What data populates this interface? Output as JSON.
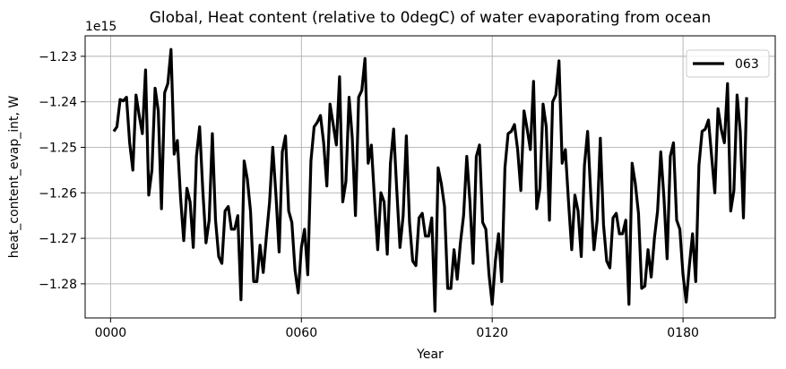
{
  "chart_data": {
    "type": "line",
    "title": "Global, Heat content (relative to 0degC) of water evaporating from ocean",
    "xlabel": "Year",
    "ylabel": "heat_content_evap_int, W",
    "y_offset_label": "1e15",
    "y_scale": 1000000000000000.0,
    "xlim": [
      -8,
      209
    ],
    "ylim": [
      -1.2875,
      -1.2255
    ],
    "xticks": [
      0,
      60,
      120,
      180
    ],
    "xtick_labels": [
      "0000",
      "0060",
      "0120",
      "0180"
    ],
    "yticks": [
      -1.28,
      -1.27,
      -1.26,
      -1.25,
      -1.24,
      -1.23
    ],
    "ytick_labels": [
      "−1.28",
      "−1.27",
      "−1.26",
      "−1.25",
      "−1.24",
      "−1.23"
    ],
    "grid": true,
    "legend_position": "top-right",
    "series": [
      {
        "name": "063",
        "color": "#000000",
        "x_start": 1,
        "x_step": 1,
        "values": [
          -1.2465,
          -1.2455,
          -1.2395,
          -1.2398,
          -1.239,
          -1.249,
          -1.255,
          -1.2385,
          -1.243,
          -1.247,
          -1.233,
          -1.2605,
          -1.255,
          -1.237,
          -1.242,
          -1.2635,
          -1.238,
          -1.236,
          -1.2285,
          -1.2515,
          -1.2485,
          -1.261,
          -1.2705,
          -1.259,
          -1.262,
          -1.272,
          -1.252,
          -1.2455,
          -1.2595,
          -1.271,
          -1.266,
          -1.247,
          -1.266,
          -1.274,
          -1.2755,
          -1.264,
          -1.263,
          -1.268,
          -1.268,
          -1.265,
          -1.2835,
          -1.253,
          -1.257,
          -1.264,
          -1.2795,
          -1.2795,
          -1.2715,
          -1.2775,
          -1.2695,
          -1.262,
          -1.25,
          -1.2605,
          -1.273,
          -1.251,
          -1.2475,
          -1.264,
          -1.2665,
          -1.277,
          -1.282,
          -1.272,
          -1.268,
          -1.278,
          -1.253,
          -1.2455,
          -1.2445,
          -1.243,
          -1.249,
          -1.2585,
          -1.2405,
          -1.245,
          -1.2495,
          -1.2345,
          -1.262,
          -1.2575,
          -1.239,
          -1.248,
          -1.265,
          -1.239,
          -1.2375,
          -1.2305,
          -1.2535,
          -1.2495,
          -1.2615,
          -1.2725,
          -1.26,
          -1.262,
          -1.2735,
          -1.2535,
          -1.246,
          -1.2595,
          -1.272,
          -1.265,
          -1.2475,
          -1.2665,
          -1.275,
          -1.276,
          -1.2655,
          -1.2645,
          -1.2695,
          -1.2695,
          -1.2655,
          -1.286,
          -1.2545,
          -1.258,
          -1.263,
          -1.281,
          -1.281,
          -1.2725,
          -1.279,
          -1.271,
          -1.265,
          -1.252,
          -1.262,
          -1.2755,
          -1.252,
          -1.2495,
          -1.2665,
          -1.268,
          -1.278,
          -1.2845,
          -1.275,
          -1.269,
          -1.2795,
          -1.2545,
          -1.247,
          -1.2465,
          -1.245,
          -1.2505,
          -1.2595,
          -1.242,
          -1.246,
          -1.2505,
          -1.2355,
          -1.2635,
          -1.259,
          -1.2405,
          -1.2455,
          -1.266,
          -1.24,
          -1.2385,
          -1.231,
          -1.2535,
          -1.2505,
          -1.262,
          -1.2725,
          -1.2605,
          -1.264,
          -1.274,
          -1.254,
          -1.2465,
          -1.2605,
          -1.2725,
          -1.266,
          -1.248,
          -1.267,
          -1.275,
          -1.2765,
          -1.2655,
          -1.2645,
          -1.269,
          -1.269,
          -1.266,
          -1.2845,
          -1.2535,
          -1.258,
          -1.2645,
          -1.281,
          -1.2805,
          -1.2725,
          -1.2785,
          -1.27,
          -1.264,
          -1.251,
          -1.261,
          -1.2745,
          -1.252,
          -1.249,
          -1.266,
          -1.268,
          -1.278,
          -1.284,
          -1.276,
          -1.269,
          -1.2795,
          -1.254,
          -1.2465,
          -1.246,
          -1.244,
          -1.252,
          -1.26,
          -1.2415,
          -1.246,
          -1.249,
          -1.236,
          -1.264,
          -1.2595,
          -1.2385,
          -1.2465,
          -1.2655,
          -1.239
        ]
      }
    ]
  }
}
